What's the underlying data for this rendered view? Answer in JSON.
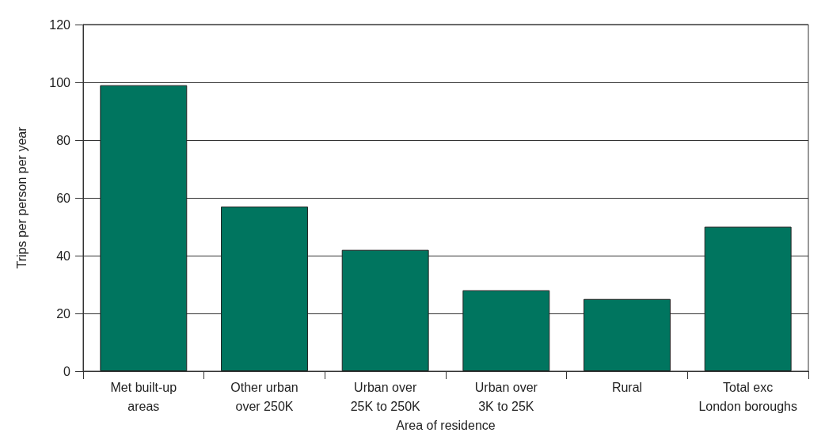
{
  "chart_data": {
    "type": "bar",
    "xlabel": "Area of residence",
    "ylabel": "Trips per person per year",
    "categories": [
      "Met built-up\nareas",
      "Other urban\nover 250K",
      "Urban over\n25K to 250K",
      "Urban over\n3K to 25K",
      "Rural",
      "Total exc\nLondon boroughs"
    ],
    "values": [
      99,
      57,
      42,
      28,
      25,
      50
    ],
    "color": "#00755f",
    "ylim": [
      0,
      120
    ],
    "yticks": [
      0,
      20,
      40,
      60,
      80,
      100,
      120
    ],
    "grid": "y"
  }
}
